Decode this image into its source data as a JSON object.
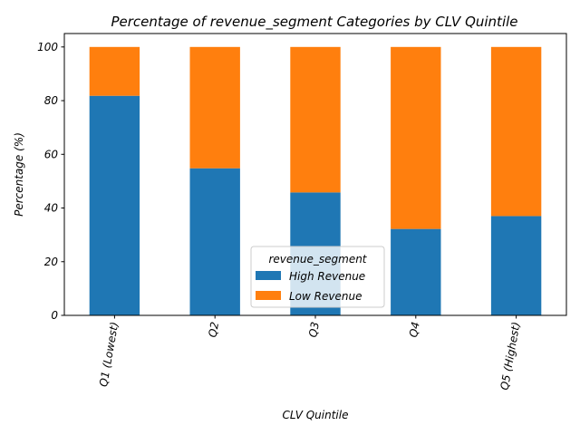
{
  "chart_data": {
    "type": "bar",
    "stacked": true,
    "title": "Percentage of revenue_segment Categories by CLV Quintile",
    "xlabel": "CLV Quintile",
    "ylabel": "Percentage (%)",
    "ylim": [
      0,
      105
    ],
    "yticks": [
      0,
      20,
      40,
      60,
      80,
      100
    ],
    "categories": [
      "Q1 (Lowest)",
      "Q2",
      "Q3",
      "Q4",
      "Q5 (Highest)"
    ],
    "series": [
      {
        "name": "High Revenue",
        "color": "#1f77b4",
        "values": [
          81.8,
          54.8,
          45.8,
          32.2,
          37.0
        ]
      },
      {
        "name": "Low Revenue",
        "color": "#ff7f0e",
        "values": [
          18.2,
          45.2,
          54.2,
          67.8,
          63.0
        ]
      }
    ],
    "legend": {
      "title": "revenue_segment",
      "position": "lower-center"
    },
    "grid": false
  }
}
